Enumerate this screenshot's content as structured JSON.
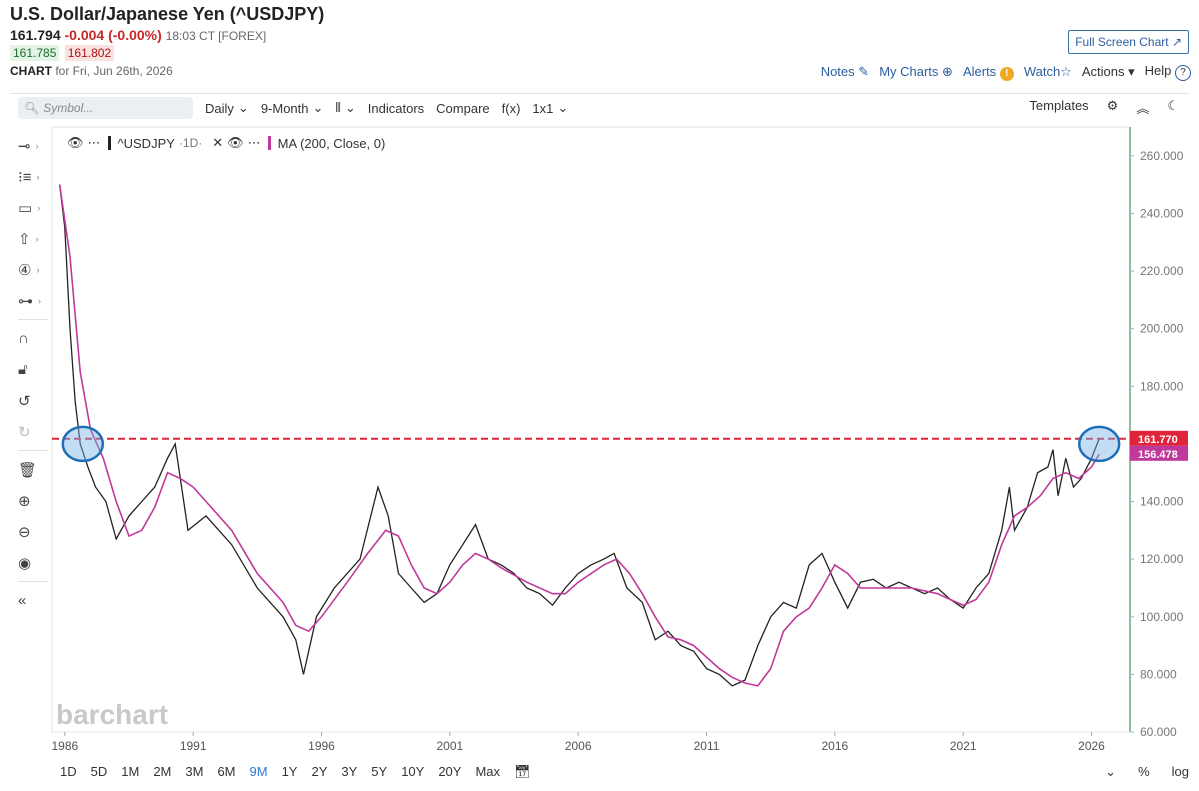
{
  "header": {
    "title": "U.S. Dollar/Japanese Yen (^USDJPY)",
    "last": "161.794",
    "change": "-0.004 (-0.00%)",
    "time": "18:03 CT [FOREX]",
    "bid": "161.785",
    "ask": "161.802",
    "chart_label": "CHART",
    "chart_for": "for Fri, Jun 26th, 2026",
    "full_screen": "Full Screen Chart"
  },
  "top_links": {
    "notes": "Notes",
    "my_charts": "My Charts",
    "alerts": "Alerts",
    "watch": "Watch",
    "actions": "Actions",
    "help": "Help"
  },
  "toolbar": {
    "symbol_placeholder": "Symbol...",
    "period": "Daily",
    "range": "9-Month",
    "indicators": "Indicators",
    "compare": "Compare",
    "fx": "f(x)",
    "layout": "1x1",
    "templates": "Templates"
  },
  "legend": {
    "symbol": "^USDJPY",
    "interval": "·1D·",
    "ma": "MA (200, Close, 0)"
  },
  "watermark": "barchart",
  "bottom": {
    "ranges": [
      "1D",
      "5D",
      "1M",
      "2M",
      "3M",
      "6M",
      "9M",
      "1Y",
      "2Y",
      "3Y",
      "5Y",
      "10Y",
      "20Y",
      "Max"
    ],
    "active": "9M",
    "pct": "%",
    "log": "log"
  },
  "colors": {
    "price": "#222222",
    "ma": "#c0399a",
    "ref_line": "#e0243a",
    "circle": "#1f6fb8",
    "ma_badge": "#c0399a",
    "price_badge": "#e0243a"
  },
  "chart_data": {
    "type": "line",
    "title": "U.S. Dollar/Japanese Yen (^USDJPY)",
    "x_ticks": [
      "1986",
      "1991",
      "1996",
      "2001",
      "2006",
      "2011",
      "2016",
      "2021",
      "2026"
    ],
    "y_ticks": [
      "60.000",
      "80.000",
      "100.000",
      "120.000",
      "140.000",
      "160.000",
      "180.000",
      "200.000",
      "220.000",
      "240.000",
      "260.000"
    ],
    "ylim": [
      60,
      270
    ],
    "xlim": [
      1985.5,
      2027.5
    ],
    "series": [
      {
        "name": "^USDJPY",
        "x": [
          1985.8,
          1986.0,
          1986.2,
          1986.4,
          1986.6,
          1986.9,
          1987.2,
          1987.6,
          1988.0,
          1988.5,
          1989.0,
          1989.5,
          1990.0,
          1990.3,
          1990.8,
          1991.5,
          1992.5,
          1993.5,
          1994.5,
          1995.0,
          1995.3,
          1995.8,
          1996.5,
          1997.5,
          1998.2,
          1998.6,
          1999.0,
          1999.5,
          2000.0,
          2000.5,
          2001.0,
          2001.5,
          2002.0,
          2002.5,
          2003.0,
          2003.5,
          2004.0,
          2004.5,
          2005.0,
          2005.5,
          2006.0,
          2006.5,
          2007.0,
          2007.4,
          2007.9,
          2008.5,
          2009.0,
          2009.5,
          2010.0,
          2010.5,
          2011.0,
          2011.5,
          2012.0,
          2012.5,
          2013.0,
          2013.5,
          2014.0,
          2014.5,
          2015.0,
          2015.5,
          2016.0,
          2016.5,
          2017.0,
          2017.5,
          2018.0,
          2018.5,
          2019.0,
          2019.5,
          2020.0,
          2020.5,
          2021.0,
          2021.5,
          2022.0,
          2022.5,
          2022.8,
          2023.0,
          2023.5,
          2023.9,
          2024.3,
          2024.5,
          2024.7,
          2025.0,
          2025.3,
          2025.6,
          2026.0,
          2026.3
        ],
        "y": [
          250,
          235,
          200,
          175,
          160,
          152,
          145,
          140,
          127,
          135,
          140,
          145,
          155,
          160,
          130,
          135,
          125,
          110,
          100,
          92,
          80,
          100,
          110,
          120,
          145,
          135,
          115,
          110,
          105,
          108,
          118,
          125,
          132,
          120,
          118,
          115,
          110,
          108,
          104,
          110,
          115,
          118,
          120,
          122,
          110,
          105,
          92,
          95,
          90,
          88,
          82,
          80,
          76,
          78,
          90,
          100,
          105,
          103,
          118,
          122,
          112,
          103,
          112,
          113,
          110,
          112,
          110,
          108,
          110,
          106,
          103,
          110,
          115,
          130,
          145,
          130,
          138,
          150,
          152,
          158,
          142,
          155,
          145,
          148,
          155,
          161.77
        ]
      },
      {
        "name": "MA (200, Close, 0)",
        "x": [
          1985.8,
          1986.2,
          1986.6,
          1987.0,
          1987.5,
          1988.0,
          1988.5,
          1989.0,
          1989.5,
          1990.0,
          1990.5,
          1991.0,
          1991.5,
          1992.5,
          1993.5,
          1994.5,
          1995.0,
          1995.5,
          1996.0,
          1997.0,
          1997.8,
          1998.5,
          1999.0,
          1999.5,
          2000.0,
          2000.5,
          2001.0,
          2001.5,
          2002.0,
          2002.5,
          2003.0,
          2004.0,
          2005.0,
          2005.5,
          2006.0,
          2007.0,
          2007.5,
          2008.0,
          2008.5,
          2009.0,
          2009.5,
          2010.0,
          2010.5,
          2011.0,
          2011.5,
          2012.0,
          2012.5,
          2013.0,
          2013.5,
          2014.0,
          2014.5,
          2015.0,
          2015.5,
          2016.0,
          2016.5,
          2017.0,
          2018.0,
          2019.0,
          2020.0,
          2020.5,
          2021.0,
          2021.5,
          2022.0,
          2022.5,
          2023.0,
          2023.5,
          2024.0,
          2024.5,
          2025.0,
          2025.5,
          2026.0,
          2026.3
        ],
        "y": [
          250,
          225,
          185,
          165,
          155,
          140,
          128,
          130,
          138,
          150,
          148,
          145,
          140,
          130,
          115,
          105,
          97,
          95,
          100,
          112,
          122,
          130,
          128,
          118,
          110,
          108,
          112,
          118,
          122,
          120,
          117,
          112,
          108,
          108,
          112,
          118,
          120,
          115,
          108,
          100,
          93,
          92,
          90,
          86,
          82,
          79,
          77,
          76,
          82,
          95,
          100,
          103,
          110,
          118,
          115,
          110,
          110,
          110,
          108,
          106,
          104,
          106,
          112,
          125,
          135,
          138,
          142,
          148,
          150,
          148,
          152,
          156.478
        ]
      }
    ],
    "reference_line": {
      "value": 161.77,
      "label": "161.770"
    },
    "ma_last_label": "156.478",
    "highlight_circles": [
      {
        "x": 1986.7,
        "y": 160
      },
      {
        "x": 2026.3,
        "y": 160
      }
    ]
  }
}
